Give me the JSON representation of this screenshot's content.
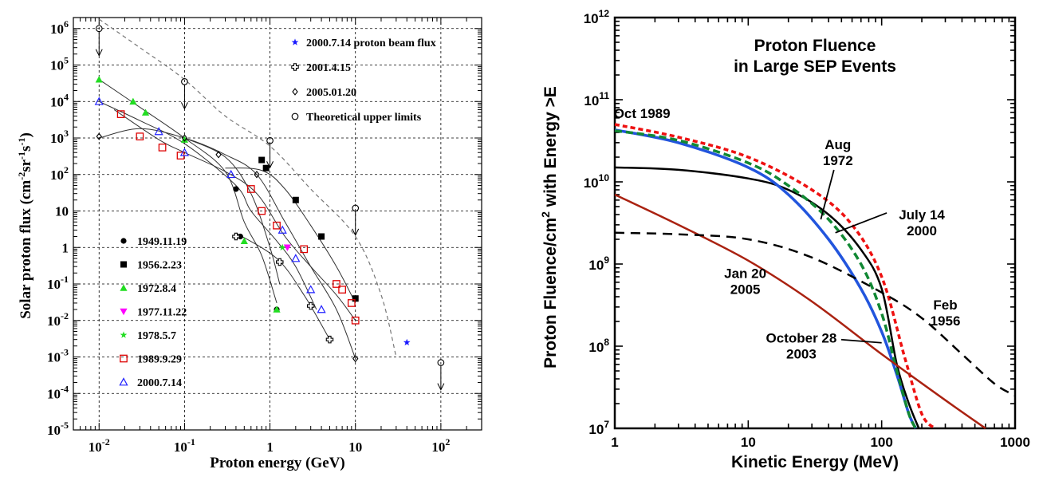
{
  "chart_data": [
    {
      "type": "scatter",
      "xlabel": "Proton energy (GeV)",
      "ylabel": "Solar proton flux (cm-2sr-1s-1)",
      "ylabel_parts": {
        "base": "Solar proton flux (cm",
        "e1": "-2",
        "mid1": "sr",
        "e2": "-1",
        "mid2": "s",
        "e3": "-1",
        "close": ")"
      },
      "xscale": "log",
      "yscale": "log",
      "xlim": [
        0.005,
        300
      ],
      "ylim": [
        1e-05,
        2000000.0
      ],
      "grid": true,
      "x_ticks": [
        {
          "v": 0.01,
          "b": "10",
          "e": "-2"
        },
        {
          "v": 0.1,
          "b": "10",
          "e": "-1"
        },
        {
          "v": 1,
          "b": "1",
          "e": ""
        },
        {
          "v": 10,
          "b": "10",
          "e": ""
        },
        {
          "v": 100,
          "b": "10",
          "e": "2"
        }
      ],
      "y_ticks": [
        {
          "v": 1000000.0,
          "b": "10",
          "e": "6"
        },
        {
          "v": 100000.0,
          "b": "10",
          "e": "5"
        },
        {
          "v": 10000.0,
          "b": "10",
          "e": "4"
        },
        {
          "v": 1000.0,
          "b": "10",
          "e": "3"
        },
        {
          "v": 100,
          "b": "10",
          "e": "2"
        },
        {
          "v": 10,
          "b": "10",
          "e": ""
        },
        {
          "v": 1,
          "b": "1",
          "e": ""
        },
        {
          "v": 0.1,
          "b": "10",
          "e": "-1"
        },
        {
          "v": 0.01,
          "b": "10",
          "e": "-2"
        },
        {
          "v": 0.001,
          "b": "10",
          "e": "-3"
        },
        {
          "v": 0.0001,
          "b": "10",
          "e": "-4"
        },
        {
          "v": 1e-05,
          "b": "10",
          "e": "-5"
        }
      ],
      "legend_top": [
        {
          "label": "2000.7.14 proton beam flux",
          "marker": "star",
          "color": "#1a1aff"
        },
        {
          "label": "2001.4.15",
          "marker": "cross",
          "color": "#000000"
        },
        {
          "label": "2005.01.20",
          "marker": "diamond",
          "color": "#000000"
        },
        {
          "label": "Theoretical upper limits",
          "marker": "circle",
          "color": "#000000"
        }
      ],
      "legend_bottom": [
        {
          "label": "1949.11.19",
          "marker": "dot",
          "color": "#000000"
        },
        {
          "label": "1956.2.23",
          "marker": "square",
          "color": "#000000"
        },
        {
          "label": "1972.8.4",
          "marker": "triangle",
          "color": "#22dd22"
        },
        {
          "label": "1977.11.22",
          "marker": "triangle-down",
          "color": "#ff00ff"
        },
        {
          "label": "1978.5.7",
          "marker": "star",
          "color": "#22dd22"
        },
        {
          "label": "1989.9.29",
          "marker": "square-open",
          "color": "#dd0000"
        },
        {
          "label": "2000.7.14",
          "marker": "triangle-open",
          "color": "#2222ff"
        }
      ],
      "series": [
        {
          "label_ref": "1949.11.19",
          "marker": "dot",
          "color": "#000000",
          "points": [
            [
              0.4,
              40
            ],
            [
              0.45,
              2
            ],
            [
              1.2,
              0.02
            ]
          ]
        },
        {
          "label_ref": "1956.2.23",
          "marker": "square",
          "color": "#000000",
          "points": [
            [
              0.8,
              250
            ],
            [
              0.9,
              150
            ],
            [
              2,
              20
            ],
            [
              4,
              2
            ],
            [
              10,
              0.04
            ]
          ]
        },
        {
          "label_ref": "1972.8.4",
          "marker": "triangle",
          "color": "#22dd22",
          "points": [
            [
              0.01,
              40000
            ],
            [
              0.025,
              10000
            ],
            [
              0.035,
              5000
            ],
            [
              0.1,
              900
            ],
            [
              0.5,
              1.5
            ],
            [
              1.2,
              0.02
            ]
          ]
        },
        {
          "label_ref": "1977.11.22",
          "marker": "triangle-down",
          "color": "#ff00ff",
          "points": [
            [
              1.6,
              1
            ]
          ]
        },
        {
          "label_ref": "1978.5.7",
          "marker": "star",
          "color": "#22dd22",
          "points": [
            [
              1.4,
              1
            ]
          ]
        },
        {
          "label_ref": "1989.9.29",
          "marker": "square-open",
          "color": "#dd0000",
          "points": [
            [
              0.018,
              4500
            ],
            [
              0.03,
              1100
            ],
            [
              0.055,
              550
            ],
            [
              0.09,
              330
            ],
            [
              0.6,
              40
            ],
            [
              0.8,
              10
            ],
            [
              1.2,
              4
            ],
            [
              2.5,
              0.9
            ],
            [
              6,
              0.1
            ],
            [
              7,
              0.07
            ],
            [
              9,
              0.03
            ],
            [
              10,
              0.01
            ]
          ]
        },
        {
          "label_ref": "2000.7.14",
          "marker": "triangle-open",
          "color": "#2222ff",
          "points": [
            [
              0.01,
              10000
            ],
            [
              0.05,
              1500
            ],
            [
              0.1,
              400
            ],
            [
              0.35,
              100
            ],
            [
              1.4,
              3
            ],
            [
              2,
              0.5
            ],
            [
              3,
              0.07
            ],
            [
              4,
              0.02
            ]
          ]
        },
        {
          "label_ref": "2001.4.15",
          "marker": "cross",
          "color": "#000000",
          "points": [
            [
              0.4,
              2
            ],
            [
              1.3,
              0.4
            ],
            [
              3,
              0.025
            ],
            [
              5,
              0.003
            ]
          ]
        },
        {
          "label_ref": "2005.01.20",
          "marker": "diamond",
          "color": "#000000",
          "points": [
            [
              0.01,
              1100
            ],
            [
              0.1,
              1000
            ],
            [
              0.25,
              350
            ],
            [
              0.7,
              100
            ],
            [
              10,
              0.0009
            ]
          ]
        },
        {
          "label_ref": "2000.7.14 proton beam flux",
          "marker": "star",
          "color": "#1a1aff",
          "points": [
            [
              40,
              0.0025
            ]
          ]
        },
        {
          "label_ref": "Theoretical upper limits",
          "marker": "circle",
          "color": "#000000",
          "points": [
            [
              0.01,
              1000000
            ],
            [
              0.1,
              35000
            ],
            [
              1,
              850
            ],
            [
              10,
              12
            ],
            [
              100,
              0.0007
            ]
          ]
        }
      ],
      "fit_curves": [
        [
          [
            0.01,
            10000
          ],
          [
            0.03,
            3000
          ],
          [
            0.1,
            700
          ],
          [
            0.4,
            50
          ],
          [
            0.6,
            10
          ],
          [
            1.2,
            1.5
          ],
          [
            2,
            0.3
          ],
          [
            3.5,
            0.02
          ]
        ],
        [
          [
            0.01,
            40000
          ],
          [
            0.03,
            7000
          ],
          [
            0.1,
            1000
          ],
          [
            0.3,
            120
          ],
          [
            0.5,
            5
          ],
          [
            0.8,
            0.6
          ],
          [
            1.2,
            0.03
          ]
        ],
        [
          [
            0.015,
            6000
          ],
          [
            0.05,
            900
          ],
          [
            0.1,
            400
          ],
          [
            0.3,
            120
          ],
          [
            0.7,
            30
          ],
          [
            1.5,
            2
          ],
          [
            3,
            0.3
          ],
          [
            6,
            0.05
          ],
          [
            10,
            0.01
          ]
        ],
        [
          [
            0.01,
            1000
          ],
          [
            0.03,
            1800
          ],
          [
            0.1,
            1000
          ],
          [
            0.3,
            350
          ],
          [
            0.7,
            100
          ],
          [
            1.5,
            5
          ],
          [
            3,
            0.3
          ],
          [
            6,
            0.02
          ],
          [
            10,
            0.0009
          ]
        ],
        [
          [
            0.3,
            150
          ],
          [
            0.8,
            130
          ],
          [
            1.5,
            40
          ],
          [
            3,
            4
          ],
          [
            6,
            0.3
          ],
          [
            10,
            0.03
          ]
        ],
        [
          [
            0.4,
            2.5
          ],
          [
            1.2,
            0.5
          ],
          [
            2.5,
            0.05
          ],
          [
            5,
            0.003
          ]
        ],
        [
          [
            0.1,
            1000
          ],
          [
            0.3,
            300
          ],
          [
            0.6,
            30
          ],
          [
            1,
            1
          ],
          [
            1.3,
            0.1
          ]
        ]
      ],
      "upper_limit_envelope": [
        [
          0.01,
          1800000
        ],
        [
          0.03,
          300000
        ],
        [
          0.1,
          40000
        ],
        [
          0.3,
          4000
        ],
        [
          1,
          600
        ],
        [
          3,
          40
        ],
        [
          10,
          2
        ],
        [
          20,
          0.05
        ],
        [
          30,
          0.001
        ]
      ],
      "arrows_at": [
        [
          0.01,
          1000000
        ],
        [
          0.1,
          35000
        ],
        [
          1,
          850
        ],
        [
          10,
          12
        ],
        [
          100,
          0.0007
        ]
      ]
    },
    {
      "type": "line",
      "title": "Proton Fluence in Large SEP Events",
      "title_lines": [
        "Proton Fluence",
        "in Large SEP Events"
      ],
      "xlabel": "Kinetic Energy (MeV)",
      "ylabel": "Proton Fluence/cm2 with Energy >E",
      "ylabel_parts": {
        "a": "Proton Fluence/cm",
        "sup": "2",
        "b": " with Energy >E"
      },
      "xscale": "log",
      "yscale": "log",
      "xlim": [
        1,
        1000
      ],
      "ylim": [
        10000000,
        1000000000000
      ],
      "grid": false,
      "x_ticks": [
        {
          "v": 1,
          "t": "1"
        },
        {
          "v": 10,
          "t": "10"
        },
        {
          "v": 100,
          "t": "100"
        },
        {
          "v": 1000,
          "t": "1000"
        }
      ],
      "y_ticks": [
        {
          "v": 10000000,
          "b": "10",
          "e": "7"
        },
        {
          "v": 100000000,
          "b": "10",
          "e": "8"
        },
        {
          "v": 1000000000,
          "b": "10",
          "e": "9"
        },
        {
          "v": 10000000000,
          "b": "10",
          "e": "10"
        },
        {
          "v": 100000000000,
          "b": "10",
          "e": "11"
        },
        {
          "v": 1000000000000,
          "b": "10",
          "e": "12"
        }
      ],
      "series": [
        {
          "id": "oct1989",
          "color": "#ee1111",
          "dash": "6,4",
          "width": 3.5,
          "points": [
            [
              1,
              50000000000
            ],
            [
              3,
              35000000000
            ],
            [
              10,
              20000000000
            ],
            [
              30,
              8000000000
            ],
            [
              60,
              3000000000
            ],
            [
              100,
              700000000
            ],
            [
              150,
              70000000
            ],
            [
              200,
              15000000
            ],
            [
              250,
              10000000
            ]
          ]
        },
        {
          "id": "aug1972",
          "color": "#000000",
          "dash": "",
          "width": 2.5,
          "points": [
            [
              1,
              15000000000
            ],
            [
              3,
              14000000000
            ],
            [
              10,
              11000000000
            ],
            [
              20,
              8000000000
            ],
            [
              40,
              4000000000
            ],
            [
              70,
              1500000000
            ],
            [
              100,
              500000000
            ],
            [
              130,
              60000000
            ],
            [
              160,
              20000000
            ],
            [
              190,
              10000000
            ]
          ]
        },
        {
          "id": "jul2000",
          "color": "#2255dd",
          "dash": "",
          "width": 3.5,
          "points": [
            [
              1,
              43000000000
            ],
            [
              3,
              30000000000
            ],
            [
              10,
              15000000000
            ],
            [
              20,
              7000000000
            ],
            [
              40,
              2000000000
            ],
            [
              70,
              500000000
            ],
            [
              100,
              150000000
            ],
            [
              130,
              45000000
            ],
            [
              160,
              15000000
            ],
            [
              180,
              10000000
            ]
          ]
        },
        {
          "id": "oct2003",
          "color": "#118833",
          "dash": "9,5",
          "width": 3.5,
          "points": [
            [
              1,
              42000000000
            ],
            [
              3,
              32000000000
            ],
            [
              10,
              17000000000
            ],
            [
              20,
              9000000000
            ],
            [
              40,
              3500000000
            ],
            [
              70,
              1000000000
            ],
            [
              100,
              250000000
            ],
            [
              130,
              50000000
            ],
            [
              160,
              15000000
            ],
            [
              180,
              10000000
            ]
          ]
        },
        {
          "id": "jan2005",
          "color": "#aa2211",
          "dash": "",
          "width": 2.5,
          "points": [
            [
              1,
              7000000000
            ],
            [
              3,
              3000000000
            ],
            [
              10,
              1100000000
            ],
            [
              30,
              350000000
            ],
            [
              100,
              80000000
            ],
            [
              300,
              22000000
            ],
            [
              600,
              10000000
            ]
          ]
        },
        {
          "id": "feb1956",
          "color": "#000000",
          "dash": "12,8",
          "width": 2.5,
          "points": [
            [
              1,
              2400000000
            ],
            [
              3,
              2300000000
            ],
            [
              10,
              2000000000
            ],
            [
              30,
              1200000000
            ],
            [
              100,
              450000000
            ],
            [
              200,
              220000000
            ],
            [
              400,
              80000000
            ],
            [
              700,
              35000000
            ],
            [
              1000,
              25000000
            ]
          ]
        }
      ],
      "annotations": [
        {
          "lines": [
            "Oct 1989"
          ],
          "x": 1.6,
          "y": 60000000000,
          "color": "#000000"
        },
        {
          "lines": [
            "Aug",
            "1972"
          ],
          "x": 47,
          "y": 25000000000,
          "color": "#000000",
          "pointer_to": [
            35,
            3500000000
          ]
        },
        {
          "lines": [
            "July 14",
            "2000"
          ],
          "x": 200,
          "y": 3500000000,
          "color": "#000000",
          "pointer_to": [
            45,
            2400000000
          ]
        },
        {
          "lines": [
            "Jan 20",
            "2005"
          ],
          "x": 9.5,
          "y": 680000000,
          "color": "#000000"
        },
        {
          "lines": [
            "Feb",
            "1956"
          ],
          "x": 300,
          "y": 280000000,
          "color": "#000000"
        },
        {
          "lines": [
            "October 28",
            "2003"
          ],
          "x": 25,
          "y": 110000000,
          "color": "#000000",
          "pointer_to": [
            100,
            110000000
          ]
        }
      ]
    }
  ]
}
